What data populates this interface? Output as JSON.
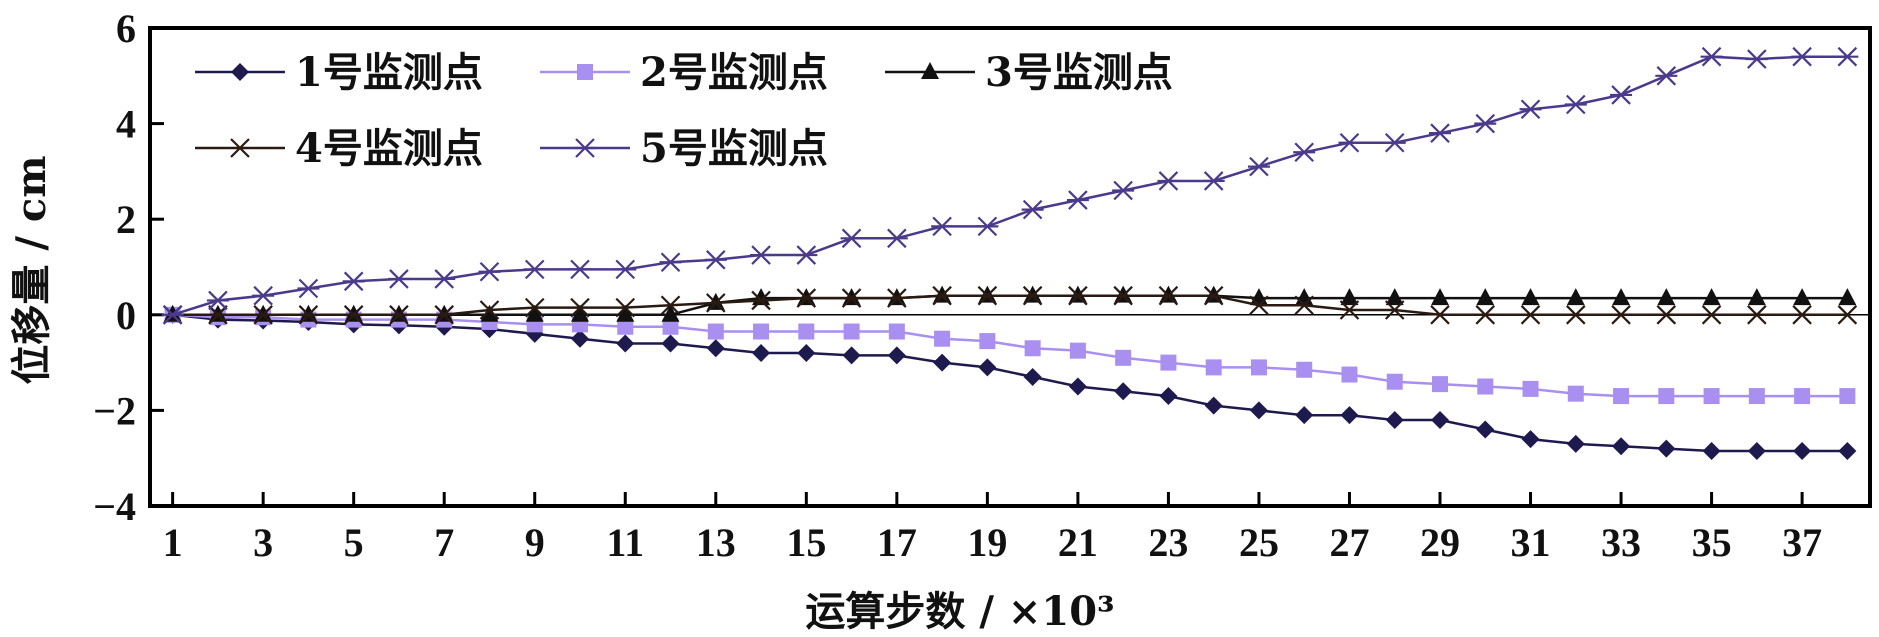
{
  "chart_data": {
    "type": "line",
    "xlabel": "运算步数 / ×10³",
    "ylabel": "位移量 / cm",
    "xlim": [
      0.5,
      38.5
    ],
    "ylim": [
      -4,
      6
    ],
    "xticks": [
      1,
      3,
      5,
      7,
      9,
      11,
      13,
      15,
      17,
      19,
      21,
      23,
      25,
      27,
      29,
      31,
      33,
      35,
      37
    ],
    "yticks": [
      -4,
      -2,
      0,
      2,
      4,
      6
    ],
    "ytick_labels": [
      "−4",
      "−2",
      "0",
      "2",
      "4",
      "6"
    ],
    "legend_position": "top-left",
    "x": [
      1,
      2,
      3,
      4,
      5,
      6,
      7,
      8,
      9,
      10,
      11,
      12,
      13,
      14,
      15,
      16,
      17,
      18,
      19,
      20,
      21,
      22,
      23,
      24,
      25,
      26,
      27,
      28,
      29,
      30,
      31,
      32,
      33,
      34,
      35,
      36,
      37,
      38
    ],
    "series": [
      {
        "name": "1号监测点",
        "marker": "diamond",
        "color": "#1f1a4d",
        "values": [
          0,
          -0.1,
          -0.12,
          -0.15,
          -0.2,
          -0.22,
          -0.25,
          -0.3,
          -0.4,
          -0.5,
          -0.6,
          -0.6,
          -0.7,
          -0.8,
          -0.8,
          -0.85,
          -0.85,
          -1.0,
          -1.1,
          -1.3,
          -1.5,
          -1.6,
          -1.7,
          -1.9,
          -2.0,
          -2.1,
          -2.1,
          -2.2,
          -2.2,
          -2.4,
          -2.6,
          -2.7,
          -2.75,
          -2.8,
          -2.85,
          -2.85,
          -2.85,
          -2.85
        ]
      },
      {
        "name": "2号监测点",
        "marker": "square",
        "color": "#a98ff0",
        "values": [
          0,
          -0.05,
          -0.05,
          -0.1,
          -0.1,
          -0.1,
          -0.1,
          -0.15,
          -0.2,
          -0.2,
          -0.25,
          -0.25,
          -0.35,
          -0.35,
          -0.35,
          -0.35,
          -0.35,
          -0.5,
          -0.55,
          -0.7,
          -0.75,
          -0.9,
          -1.0,
          -1.1,
          -1.1,
          -1.15,
          -1.25,
          -1.4,
          -1.45,
          -1.5,
          -1.55,
          -1.65,
          -1.7,
          -1.7,
          -1.7,
          -1.7,
          -1.7,
          -1.7
        ]
      },
      {
        "name": "3号监测点",
        "marker": "triangle",
        "color": "#111111",
        "values": [
          0,
          0,
          0,
          0,
          0,
          0,
          0,
          0,
          0,
          0,
          0,
          0,
          0.25,
          0.35,
          0.35,
          0.35,
          0.35,
          0.4,
          0.4,
          0.4,
          0.4,
          0.4,
          0.4,
          0.4,
          0.35,
          0.35,
          0.35,
          0.35,
          0.35,
          0.35,
          0.35,
          0.35,
          0.35,
          0.35,
          0.35,
          0.35,
          0.35,
          0.35
        ]
      },
      {
        "name": "4号监测点",
        "marker": "x",
        "color": "#2a1a12",
        "values": [
          0,
          0,
          0,
          0,
          0,
          0,
          0,
          0.1,
          0.15,
          0.15,
          0.15,
          0.2,
          0.25,
          0.3,
          0.35,
          0.35,
          0.35,
          0.4,
          0.4,
          0.4,
          0.4,
          0.4,
          0.4,
          0.4,
          0.2,
          0.2,
          0.1,
          0.1,
          0.0,
          0.0,
          0.0,
          0.0,
          0.0,
          0.0,
          0.0,
          0.0,
          0.0,
          0.0
        ]
      },
      {
        "name": "5号监测点",
        "marker": "asterisk",
        "color": "#4b3a8c",
        "values": [
          0,
          0.3,
          0.4,
          0.55,
          0.7,
          0.75,
          0.75,
          0.9,
          0.95,
          0.95,
          0.95,
          1.1,
          1.15,
          1.25,
          1.25,
          1.6,
          1.6,
          1.85,
          1.85,
          2.2,
          2.4,
          2.6,
          2.8,
          2.8,
          3.1,
          3.4,
          3.6,
          3.6,
          3.8,
          4.0,
          4.3,
          4.4,
          4.6,
          5.0,
          5.4,
          5.35,
          5.4,
          5.4
        ]
      }
    ]
  }
}
